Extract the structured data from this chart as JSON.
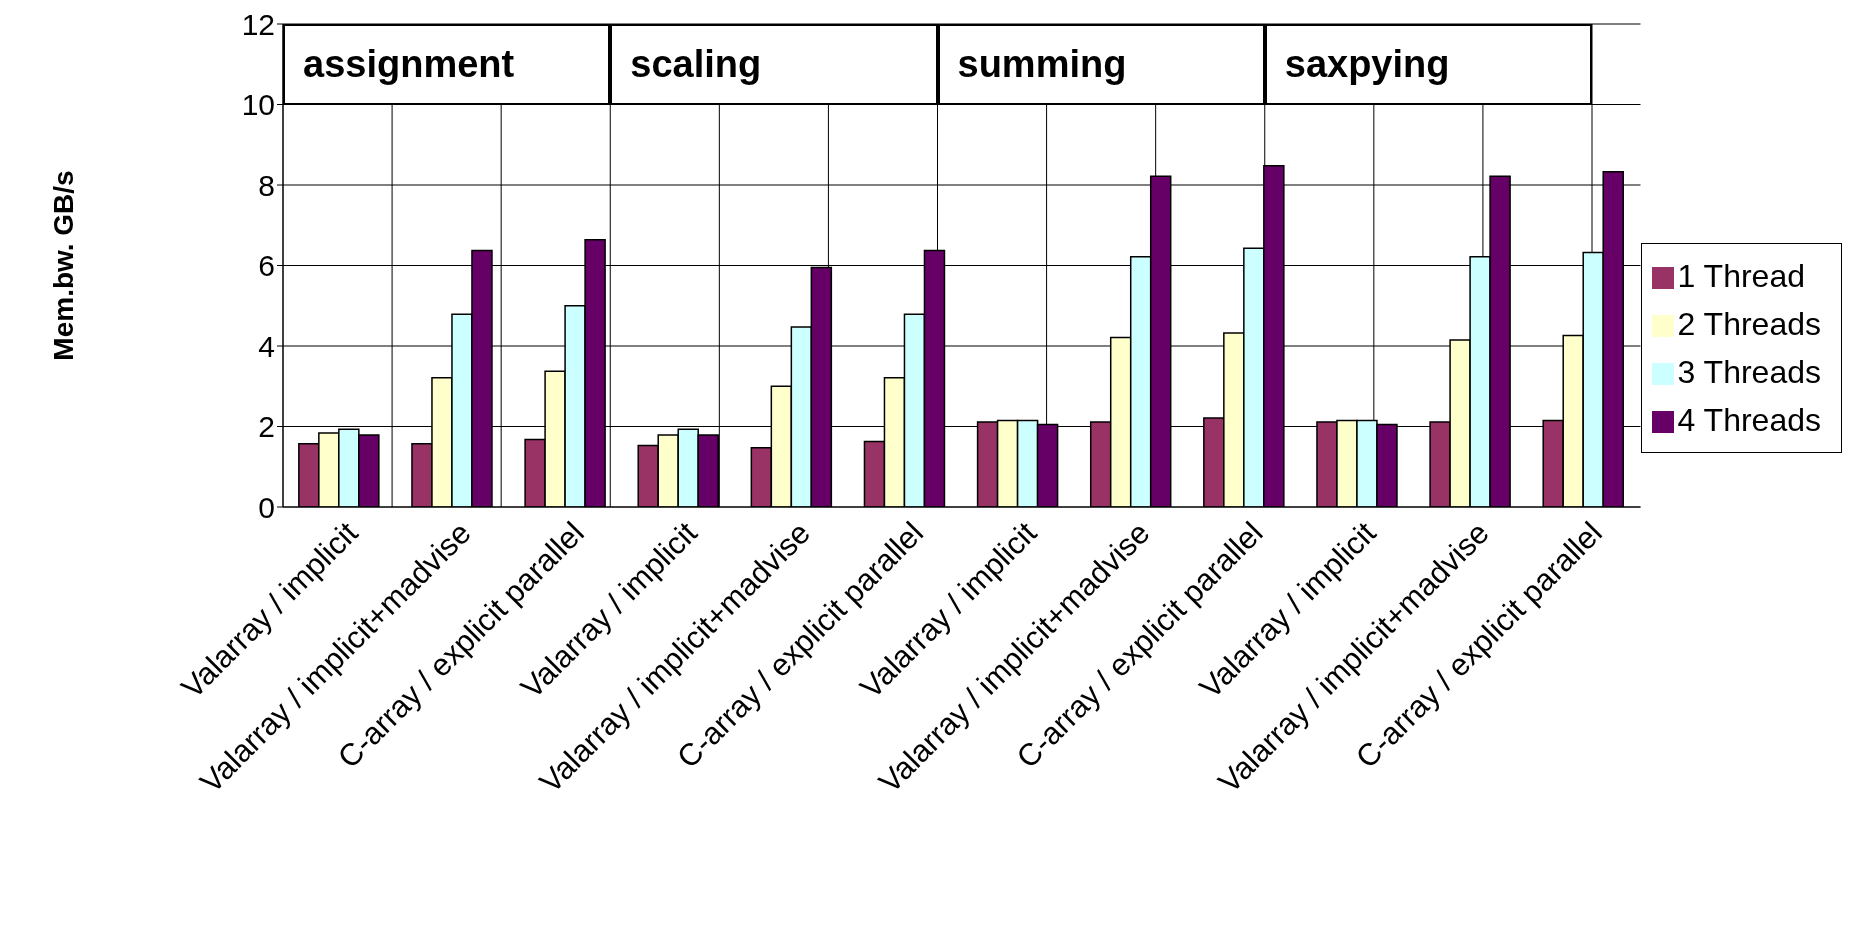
{
  "chart_data": {
    "type": "bar",
    "ylabel": "Mem.bw. GB/s",
    "categories": [
      "Valarray / implicit",
      "Valarray / implicit+madvise",
      "C-array / explicit parallel",
      "Valarray / implicit",
      "Valarray / implicit+madvise",
      "C-array / explicit parallel",
      "Valarray / implicit",
      "Valarray / implicit+madvise",
      "C-array / explicit parallel",
      "Valarray / implicit",
      "Valarray / implicit+madvise",
      "C-array / explicit parallel"
    ],
    "series": [
      {
        "name": "1 Thread",
        "color": "#993366",
        "values": [
          1.57,
          1.57,
          1.68,
          1.53,
          1.47,
          1.63,
          2.11,
          2.11,
          2.21,
          2.11,
          2.11,
          2.15
        ]
      },
      {
        "name": "2 Threads",
        "color": "#ffffcc",
        "values": [
          1.84,
          3.21,
          3.37,
          1.79,
          3.0,
          3.21,
          2.15,
          4.21,
          4.32,
          2.15,
          4.15,
          4.26
        ]
      },
      {
        "name": "3 Threads",
        "color": "#ccffff",
        "values": [
          1.93,
          4.79,
          5.0,
          1.93,
          4.47,
          4.79,
          2.15,
          6.22,
          6.43,
          2.15,
          6.22,
          6.32
        ]
      },
      {
        "name": "4 Threads",
        "color": "#660066",
        "values": [
          1.79,
          6.37,
          6.64,
          1.79,
          5.95,
          6.37,
          2.05,
          8.22,
          8.48,
          2.05,
          8.22,
          8.33
        ]
      }
    ],
    "ylim": [
      0,
      12
    ],
    "yticks": [
      0,
      2,
      4,
      6,
      8,
      10,
      12
    ],
    "grid": true,
    "legend": "right",
    "annotations": [
      "assignment",
      "scaling",
      "summing",
      "saxpying"
    ]
  }
}
